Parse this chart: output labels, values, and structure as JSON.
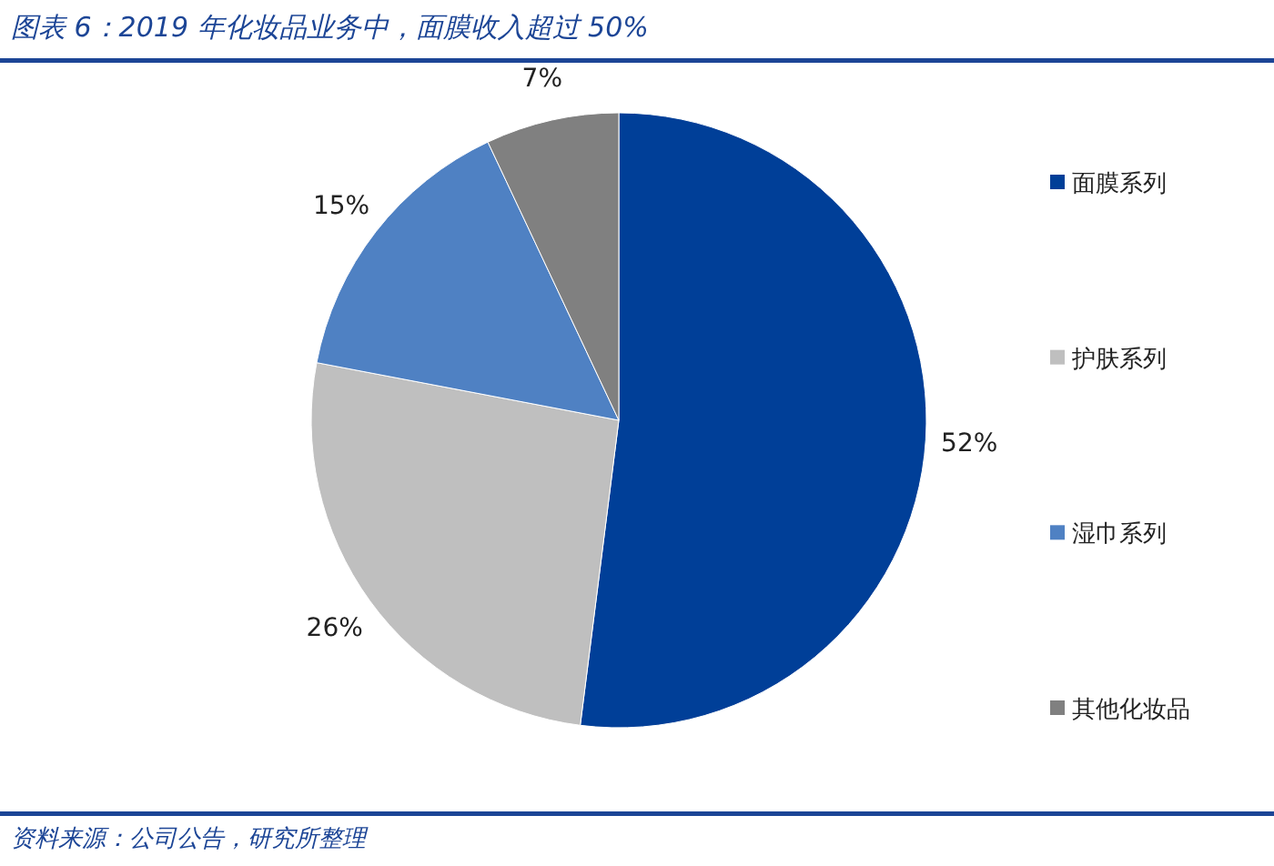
{
  "chart_data": {
    "type": "pie",
    "title": "图表 6：2019 年化妆品业务中，面膜收入超过 50%",
    "categories": [
      "面膜系列",
      "护肤系列",
      "湿巾系列",
      "其他化妆品"
    ],
    "values": [
      52,
      26,
      15,
      7
    ],
    "value_labels": [
      "52%",
      "26%",
      "15%",
      "7%"
    ],
    "colors": [
      "#003f98",
      "#bfbfbf",
      "#4f81c3",
      "#808080"
    ],
    "legend": "right",
    "annotations": [
      "资料来源：公司公告，研究所整理"
    ]
  }
}
